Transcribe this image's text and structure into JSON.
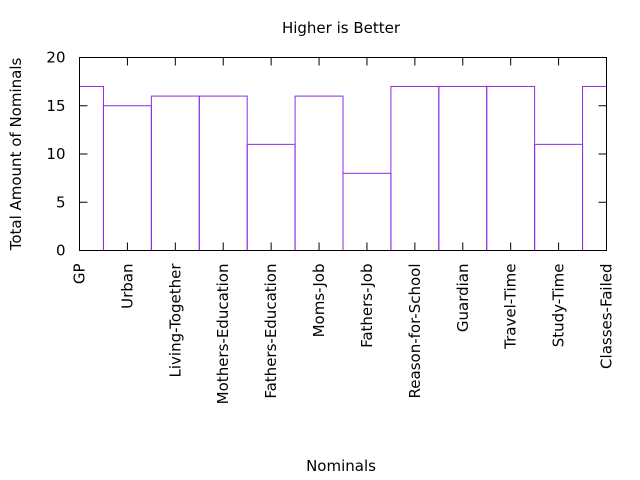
{
  "chart_data": {
    "type": "bar",
    "title": "Higher is Better",
    "xlabel": "Nominals",
    "ylabel": "Total Amount of Nominals",
    "ylim": [
      0,
      20
    ],
    "yticks": [
      0,
      5,
      10,
      15,
      20
    ],
    "grid": false,
    "style": "step",
    "bar_color": "#8b2be2",
    "categories": [
      "GP",
      "Urban",
      "Living-Together",
      "Mothers-Education",
      "Fathers-Education",
      "Moms-Job",
      "Fathers-Job",
      "Reason-for-School",
      "Guardian",
      "Travel-Time",
      "Study-Time",
      "Classes-Failed"
    ],
    "values": [
      17,
      15,
      16,
      16,
      11,
      16,
      8,
      17,
      17,
      17,
      11,
      17
    ]
  }
}
